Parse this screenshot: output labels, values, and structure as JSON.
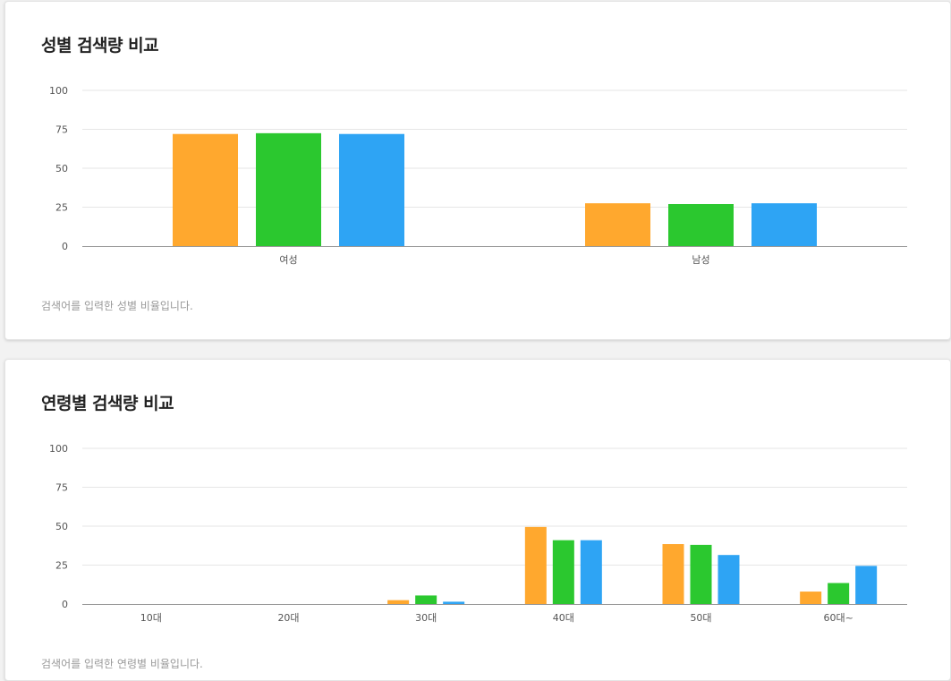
{
  "colors": {
    "series1": "#ffa82e",
    "series2": "#2bc82f",
    "series3": "#2ea4f4",
    "grid": "#e6e6e6",
    "axis": "#999999"
  },
  "gender": {
    "title": "성별 검색량 비교",
    "description": "검색어를 입력한 성별 비율입니다."
  },
  "age": {
    "title": "연령별 검색량 비교",
    "description": "검색어를 입력한 연령별 비율입니다."
  },
  "chart_data": [
    {
      "type": "bar",
      "title": "성별 검색량 비교",
      "categories": [
        "여성",
        "남성"
      ],
      "yticks": [
        "0",
        "25",
        "50",
        "75",
        "100"
      ],
      "ylim": [
        0,
        100
      ],
      "grid": true,
      "series": [
        {
          "values": [
            72,
            27.5
          ]
        },
        {
          "values": [
            72.5,
            27
          ]
        },
        {
          "values": [
            72,
            27.5
          ]
        }
      ]
    },
    {
      "type": "bar",
      "title": "연령별 검색량 비교",
      "categories": [
        "10대",
        "20대",
        "30대",
        "40대",
        "50대",
        "60대~"
      ],
      "yticks": [
        "0",
        "25",
        "50",
        "75",
        "100"
      ],
      "ylim": [
        0,
        100
      ],
      "grid": true,
      "series": [
        {
          "values": [
            0,
            0,
            2.5,
            49.5,
            38.5,
            8
          ]
        },
        {
          "values": [
            0,
            0,
            5.5,
            41,
            38,
            13.5
          ]
        },
        {
          "values": [
            0,
            0,
            1.5,
            41,
            31.5,
            24.5
          ]
        }
      ]
    }
  ]
}
